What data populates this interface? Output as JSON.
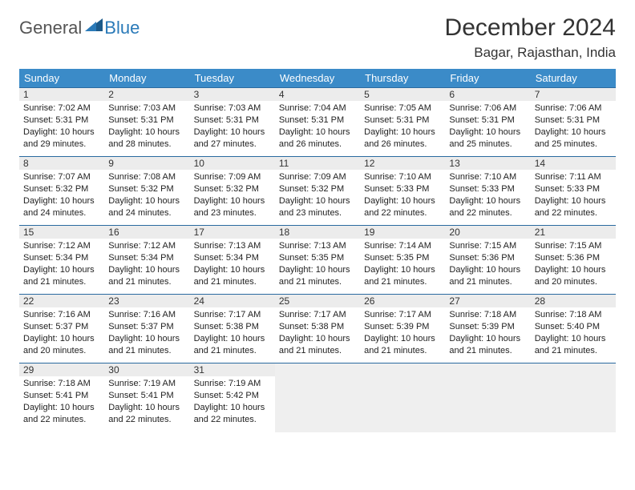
{
  "logo": {
    "general": "General",
    "blue": "Blue"
  },
  "title": "December 2024",
  "location": "Bagar, Rajasthan, India",
  "colors": {
    "header_bg": "#3b8bc8",
    "header_text": "#ffffff",
    "row_border": "#2a6aa0",
    "daynum_bg": "#ececec",
    "empty_bg": "#efefef",
    "logo_blue": "#2a7ab8"
  },
  "weekdays": [
    "Sunday",
    "Monday",
    "Tuesday",
    "Wednesday",
    "Thursday",
    "Friday",
    "Saturday"
  ],
  "weeks": [
    [
      {
        "n": "1",
        "sr": "Sunrise: 7:02 AM",
        "ss": "Sunset: 5:31 PM",
        "d1": "Daylight: 10 hours",
        "d2": "and 29 minutes."
      },
      {
        "n": "2",
        "sr": "Sunrise: 7:03 AM",
        "ss": "Sunset: 5:31 PM",
        "d1": "Daylight: 10 hours",
        "d2": "and 28 minutes."
      },
      {
        "n": "3",
        "sr": "Sunrise: 7:03 AM",
        "ss": "Sunset: 5:31 PM",
        "d1": "Daylight: 10 hours",
        "d2": "and 27 minutes."
      },
      {
        "n": "4",
        "sr": "Sunrise: 7:04 AM",
        "ss": "Sunset: 5:31 PM",
        "d1": "Daylight: 10 hours",
        "d2": "and 26 minutes."
      },
      {
        "n": "5",
        "sr": "Sunrise: 7:05 AM",
        "ss": "Sunset: 5:31 PM",
        "d1": "Daylight: 10 hours",
        "d2": "and 26 minutes."
      },
      {
        "n": "6",
        "sr": "Sunrise: 7:06 AM",
        "ss": "Sunset: 5:31 PM",
        "d1": "Daylight: 10 hours",
        "d2": "and 25 minutes."
      },
      {
        "n": "7",
        "sr": "Sunrise: 7:06 AM",
        "ss": "Sunset: 5:31 PM",
        "d1": "Daylight: 10 hours",
        "d2": "and 25 minutes."
      }
    ],
    [
      {
        "n": "8",
        "sr": "Sunrise: 7:07 AM",
        "ss": "Sunset: 5:32 PM",
        "d1": "Daylight: 10 hours",
        "d2": "and 24 minutes."
      },
      {
        "n": "9",
        "sr": "Sunrise: 7:08 AM",
        "ss": "Sunset: 5:32 PM",
        "d1": "Daylight: 10 hours",
        "d2": "and 24 minutes."
      },
      {
        "n": "10",
        "sr": "Sunrise: 7:09 AM",
        "ss": "Sunset: 5:32 PM",
        "d1": "Daylight: 10 hours",
        "d2": "and 23 minutes."
      },
      {
        "n": "11",
        "sr": "Sunrise: 7:09 AM",
        "ss": "Sunset: 5:32 PM",
        "d1": "Daylight: 10 hours",
        "d2": "and 23 minutes."
      },
      {
        "n": "12",
        "sr": "Sunrise: 7:10 AM",
        "ss": "Sunset: 5:33 PM",
        "d1": "Daylight: 10 hours",
        "d2": "and 22 minutes."
      },
      {
        "n": "13",
        "sr": "Sunrise: 7:10 AM",
        "ss": "Sunset: 5:33 PM",
        "d1": "Daylight: 10 hours",
        "d2": "and 22 minutes."
      },
      {
        "n": "14",
        "sr": "Sunrise: 7:11 AM",
        "ss": "Sunset: 5:33 PM",
        "d1": "Daylight: 10 hours",
        "d2": "and 22 minutes."
      }
    ],
    [
      {
        "n": "15",
        "sr": "Sunrise: 7:12 AM",
        "ss": "Sunset: 5:34 PM",
        "d1": "Daylight: 10 hours",
        "d2": "and 21 minutes."
      },
      {
        "n": "16",
        "sr": "Sunrise: 7:12 AM",
        "ss": "Sunset: 5:34 PM",
        "d1": "Daylight: 10 hours",
        "d2": "and 21 minutes."
      },
      {
        "n": "17",
        "sr": "Sunrise: 7:13 AM",
        "ss": "Sunset: 5:34 PM",
        "d1": "Daylight: 10 hours",
        "d2": "and 21 minutes."
      },
      {
        "n": "18",
        "sr": "Sunrise: 7:13 AM",
        "ss": "Sunset: 5:35 PM",
        "d1": "Daylight: 10 hours",
        "d2": "and 21 minutes."
      },
      {
        "n": "19",
        "sr": "Sunrise: 7:14 AM",
        "ss": "Sunset: 5:35 PM",
        "d1": "Daylight: 10 hours",
        "d2": "and 21 minutes."
      },
      {
        "n": "20",
        "sr": "Sunrise: 7:15 AM",
        "ss": "Sunset: 5:36 PM",
        "d1": "Daylight: 10 hours",
        "d2": "and 21 minutes."
      },
      {
        "n": "21",
        "sr": "Sunrise: 7:15 AM",
        "ss": "Sunset: 5:36 PM",
        "d1": "Daylight: 10 hours",
        "d2": "and 20 minutes."
      }
    ],
    [
      {
        "n": "22",
        "sr": "Sunrise: 7:16 AM",
        "ss": "Sunset: 5:37 PM",
        "d1": "Daylight: 10 hours",
        "d2": "and 20 minutes."
      },
      {
        "n": "23",
        "sr": "Sunrise: 7:16 AM",
        "ss": "Sunset: 5:37 PM",
        "d1": "Daylight: 10 hours",
        "d2": "and 21 minutes."
      },
      {
        "n": "24",
        "sr": "Sunrise: 7:17 AM",
        "ss": "Sunset: 5:38 PM",
        "d1": "Daylight: 10 hours",
        "d2": "and 21 minutes."
      },
      {
        "n": "25",
        "sr": "Sunrise: 7:17 AM",
        "ss": "Sunset: 5:38 PM",
        "d1": "Daylight: 10 hours",
        "d2": "and 21 minutes."
      },
      {
        "n": "26",
        "sr": "Sunrise: 7:17 AM",
        "ss": "Sunset: 5:39 PM",
        "d1": "Daylight: 10 hours",
        "d2": "and 21 minutes."
      },
      {
        "n": "27",
        "sr": "Sunrise: 7:18 AM",
        "ss": "Sunset: 5:39 PM",
        "d1": "Daylight: 10 hours",
        "d2": "and 21 minutes."
      },
      {
        "n": "28",
        "sr": "Sunrise: 7:18 AM",
        "ss": "Sunset: 5:40 PM",
        "d1": "Daylight: 10 hours",
        "d2": "and 21 minutes."
      }
    ],
    [
      {
        "n": "29",
        "sr": "Sunrise: 7:18 AM",
        "ss": "Sunset: 5:41 PM",
        "d1": "Daylight: 10 hours",
        "d2": "and 22 minutes."
      },
      {
        "n": "30",
        "sr": "Sunrise: 7:19 AM",
        "ss": "Sunset: 5:41 PM",
        "d1": "Daylight: 10 hours",
        "d2": "and 22 minutes."
      },
      {
        "n": "31",
        "sr": "Sunrise: 7:19 AM",
        "ss": "Sunset: 5:42 PM",
        "d1": "Daylight: 10 hours",
        "d2": "and 22 minutes."
      },
      null,
      null,
      null,
      null
    ]
  ]
}
